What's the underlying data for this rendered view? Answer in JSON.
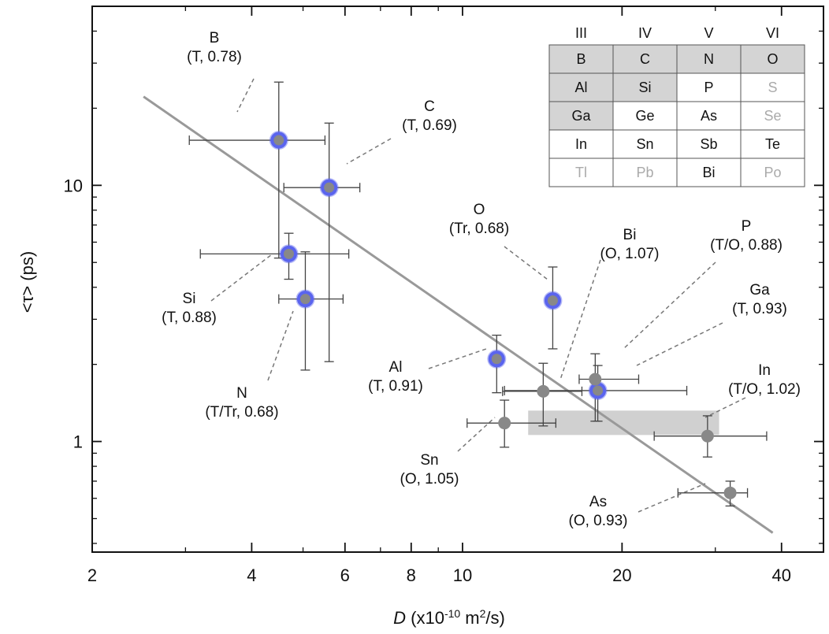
{
  "chart_data": {
    "type": "scatter",
    "xscale": "log",
    "yscale": "log",
    "xlim": [
      2,
      48
    ],
    "ylim": [
      0.37,
      50
    ],
    "xticks": [
      2,
      4,
      6,
      8,
      10,
      20,
      40
    ],
    "yticks": [
      1,
      10
    ],
    "xlabel": {
      "var": "D",
      "pre": " (x10",
      "exp1": "-10",
      "mid": " m",
      "exp2": "2",
      "post": "/s)"
    },
    "ylabel": "<τ> (ps)",
    "fit_line": {
      "x": [
        2.5,
        38.5
      ],
      "y": [
        22.2,
        0.44
      ]
    },
    "colors": {
      "highlight_ring": "#5a64ee",
      "point_fill": "#888888",
      "fit_line": "#999999",
      "shaded": "#d0d0d0",
      "grey_text": "#aaaaaa"
    },
    "shaded_region": {
      "x": [
        13.3,
        30.5
      ],
      "y": [
        1.06,
        1.32
      ]
    },
    "points": [
      {
        "name": "B",
        "tag": "(T, 0.78)",
        "x": 4.5,
        "y": 15.0,
        "xerr": [
          3.05,
          5.5
        ],
        "yerr": [
          5.2,
          25.3
        ],
        "highlight": true
      },
      {
        "name": "C",
        "tag": "(T, 0.69)",
        "x": 5.6,
        "y": 9.8,
        "xerr": [
          4.6,
          6.4
        ],
        "yerr": [
          2.05,
          17.5
        ],
        "highlight": true
      },
      {
        "name": "Si",
        "tag": "(T, 0.88)",
        "x": 4.7,
        "y": 5.4,
        "xerr": [
          3.2,
          6.1
        ],
        "yerr": [
          4.3,
          6.5
        ],
        "highlight": true
      },
      {
        "name": "N",
        "tag": "(T/Tr, 0.68)",
        "x": 5.05,
        "y": 3.6,
        "xerr": [
          4.5,
          5.95
        ],
        "yerr": [
          1.9,
          5.5
        ],
        "highlight": true
      },
      {
        "name": "O",
        "tag": "(Tr, 0.68)",
        "x": 14.8,
        "y": 3.55,
        "xerr": [],
        "yerr": [
          2.3,
          4.8
        ],
        "highlight": true
      },
      {
        "name": "Al",
        "tag": "(T, 0.91)",
        "x": 11.6,
        "y": 2.1,
        "xerr": [],
        "yerr": [
          1.55,
          2.6
        ],
        "highlight": true
      },
      {
        "name": "P",
        "tag": "(T/O, 0.88)",
        "x": 18.0,
        "y": 1.58,
        "xerr": [
          12.0,
          26.5
        ],
        "yerr": [
          1.2,
          1.98
        ],
        "highlight": true
      },
      {
        "name": "Ga",
        "tag": "(T, 0.93)",
        "x": 17.8,
        "y": 1.75,
        "xerr": [
          16.6,
          21.5
        ],
        "yerr": [
          1.2,
          2.2
        ],
        "highlight": false
      },
      {
        "name": "Bi",
        "tag": "(O, 1.07)",
        "x": 14.2,
        "y": 1.57,
        "xerr": [
          11.9,
          16.8
        ],
        "yerr": [
          1.15,
          2.02
        ],
        "highlight": false
      },
      {
        "name": "Sn",
        "tag": "(O, 1.05)",
        "x": 12.0,
        "y": 1.18,
        "xerr": [
          10.2,
          15.0
        ],
        "yerr": [
          0.95,
          1.45
        ],
        "highlight": false
      },
      {
        "name": "In",
        "tag": "(T/O, 1.02)",
        "x": 29.0,
        "y": 1.05,
        "xerr": [
          23.0,
          37.5
        ],
        "yerr": [
          0.87,
          1.26
        ],
        "highlight": false
      },
      {
        "name": "As",
        "tag": "(O, 0.93)",
        "x": 32.0,
        "y": 0.63,
        "xerr": [
          25.5,
          34.5
        ],
        "yerr": [
          0.56,
          0.7
        ],
        "highlight": false
      }
    ],
    "periodic_table": {
      "groups": [
        "III",
        "IV",
        "V",
        "VI"
      ],
      "rows": [
        [
          {
            "s": "B",
            "st": "shaded"
          },
          {
            "s": "C",
            "st": "shaded"
          },
          {
            "s": "N",
            "st": "shaded"
          },
          {
            "s": "O",
            "st": "shaded"
          }
        ],
        [
          {
            "s": "Al",
            "st": "shaded"
          },
          {
            "s": "Si",
            "st": "shaded"
          },
          {
            "s": "P",
            "st": "normal"
          },
          {
            "s": "S",
            "st": "grey"
          }
        ],
        [
          {
            "s": "Ga",
            "st": "shaded"
          },
          {
            "s": "Ge",
            "st": "normal"
          },
          {
            "s": "As",
            "st": "normal"
          },
          {
            "s": "Se",
            "st": "grey"
          }
        ],
        [
          {
            "s": "In",
            "st": "normal"
          },
          {
            "s": "Sn",
            "st": "normal"
          },
          {
            "s": "Sb",
            "st": "normal"
          },
          {
            "s": "Te",
            "st": "normal"
          }
        ],
        [
          {
            "s": "Tl",
            "st": "grey"
          },
          {
            "s": "Pb",
            "st": "grey"
          },
          {
            "s": "Bi",
            "st": "normal"
          },
          {
            "s": "Po",
            "st": "grey"
          }
        ]
      ]
    }
  }
}
